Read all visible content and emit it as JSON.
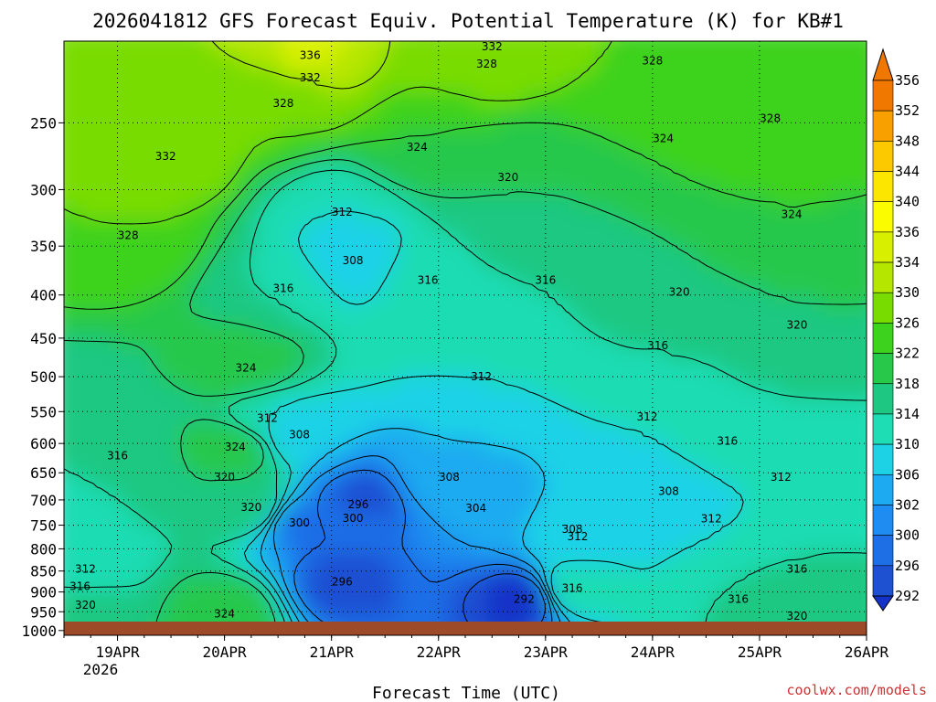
{
  "chart_data": {
    "type": "heatmap",
    "title": "2026041812 GFS Forecast Equiv. Potential Temperature (K) for KB#1",
    "xlabel": "Forecast Time (UTC)",
    "ylabel": "",
    "x_ticks": [
      "19APR",
      "20APR",
      "21APR",
      "22APR",
      "23APR",
      "24APR",
      "25APR",
      "26APR"
    ],
    "x_year": "2026",
    "x_range_days": [
      18.5,
      26.0
    ],
    "y_ticks": [
      250,
      300,
      350,
      400,
      450,
      500,
      550,
      600,
      650,
      700,
      750,
      800,
      850,
      900,
      950,
      1000
    ],
    "y_range_hpa": [
      200,
      1013
    ],
    "y_scale": "log",
    "grid": true,
    "colorbar": {
      "labels": [
        356,
        352,
        348,
        344,
        340,
        336,
        334,
        330,
        326,
        322,
        318,
        314,
        310,
        306,
        302,
        300,
        296,
        292
      ],
      "colors": [
        "#f07800",
        "#f8a000",
        "#fcc800",
        "#fce600",
        "#fcfc00",
        "#d8f000",
        "#b4e600",
        "#78dc00",
        "#3cd21e",
        "#28c84b",
        "#1ec882",
        "#1edcb4",
        "#1ed2e6",
        "#1eaaf0",
        "#1e8cf0",
        "#1e6ee6",
        "#1e50d2",
        "#1432c8"
      ]
    },
    "contour_interval": 4,
    "contour_labels": [
      {
        "value": 336,
        "day": 20.8,
        "hpa": 208
      },
      {
        "value": 332,
        "day": 20.8,
        "hpa": 221
      },
      {
        "value": 332,
        "day": 22.5,
        "hpa": 203
      },
      {
        "value": 328,
        "day": 22.45,
        "hpa": 213
      },
      {
        "value": 328,
        "day": 24.0,
        "hpa": 211
      },
      {
        "value": 328,
        "day": 20.55,
        "hpa": 237
      },
      {
        "value": 328,
        "day": 25.1,
        "hpa": 247
      },
      {
        "value": 332,
        "day": 19.45,
        "hpa": 274
      },
      {
        "value": 324,
        "day": 21.8,
        "hpa": 267
      },
      {
        "value": 324,
        "day": 24.1,
        "hpa": 261
      },
      {
        "value": 320,
        "day": 22.65,
        "hpa": 290
      },
      {
        "value": 324,
        "day": 25.3,
        "hpa": 321
      },
      {
        "value": 328,
        "day": 19.1,
        "hpa": 340
      },
      {
        "value": 312,
        "day": 21.1,
        "hpa": 319
      },
      {
        "value": 308,
        "day": 21.2,
        "hpa": 364
      },
      {
        "value": 316,
        "day": 21.9,
        "hpa": 384
      },
      {
        "value": 316,
        "day": 23.0,
        "hpa": 384
      },
      {
        "value": 316,
        "day": 20.55,
        "hpa": 393
      },
      {
        "value": 320,
        "day": 24.25,
        "hpa": 397
      },
      {
        "value": 320,
        "day": 25.35,
        "hpa": 434
      },
      {
        "value": 316,
        "day": 24.05,
        "hpa": 459
      },
      {
        "value": 324,
        "day": 20.2,
        "hpa": 488
      },
      {
        "value": 312,
        "day": 22.4,
        "hpa": 500
      },
      {
        "value": 312,
        "day": 23.95,
        "hpa": 558
      },
      {
        "value": 312,
        "day": 20.4,
        "hpa": 560
      },
      {
        "value": 308,
        "day": 20.7,
        "hpa": 586
      },
      {
        "value": 316,
        "day": 24.7,
        "hpa": 596
      },
      {
        "value": 324,
        "day": 20.1,
        "hpa": 606
      },
      {
        "value": 316,
        "day": 19.0,
        "hpa": 620
      },
      {
        "value": 308,
        "day": 22.1,
        "hpa": 658
      },
      {
        "value": 312,
        "day": 25.2,
        "hpa": 658
      },
      {
        "value": 320,
        "day": 20.0,
        "hpa": 658
      },
      {
        "value": 308,
        "day": 24.15,
        "hpa": 684
      },
      {
        "value": 296,
        "day": 21.25,
        "hpa": 709
      },
      {
        "value": 320,
        "day": 20.25,
        "hpa": 714
      },
      {
        "value": 304,
        "day": 22.35,
        "hpa": 716
      },
      {
        "value": 300,
        "day": 21.2,
        "hpa": 736
      },
      {
        "value": 300,
        "day": 20.7,
        "hpa": 745
      },
      {
        "value": 312,
        "day": 24.55,
        "hpa": 737
      },
      {
        "value": 308,
        "day": 23.25,
        "hpa": 758
      },
      {
        "value": 312,
        "day": 23.3,
        "hpa": 774
      },
      {
        "value": 312,
        "day": 18.7,
        "hpa": 845
      },
      {
        "value": 316,
        "day": 25.35,
        "hpa": 845
      },
      {
        "value": 296,
        "day": 21.1,
        "hpa": 875
      },
      {
        "value": 316,
        "day": 18.65,
        "hpa": 886
      },
      {
        "value": 316,
        "day": 23.25,
        "hpa": 891
      },
      {
        "value": 292,
        "day": 22.8,
        "hpa": 918
      },
      {
        "value": 316,
        "day": 24.8,
        "hpa": 918
      },
      {
        "value": 320,
        "day": 18.7,
        "hpa": 933
      },
      {
        "value": 324,
        "day": 20.0,
        "hpa": 955
      },
      {
        "value": 320,
        "day": 25.35,
        "hpa": 961
      }
    ]
  },
  "credit": "coolwx.com/models"
}
